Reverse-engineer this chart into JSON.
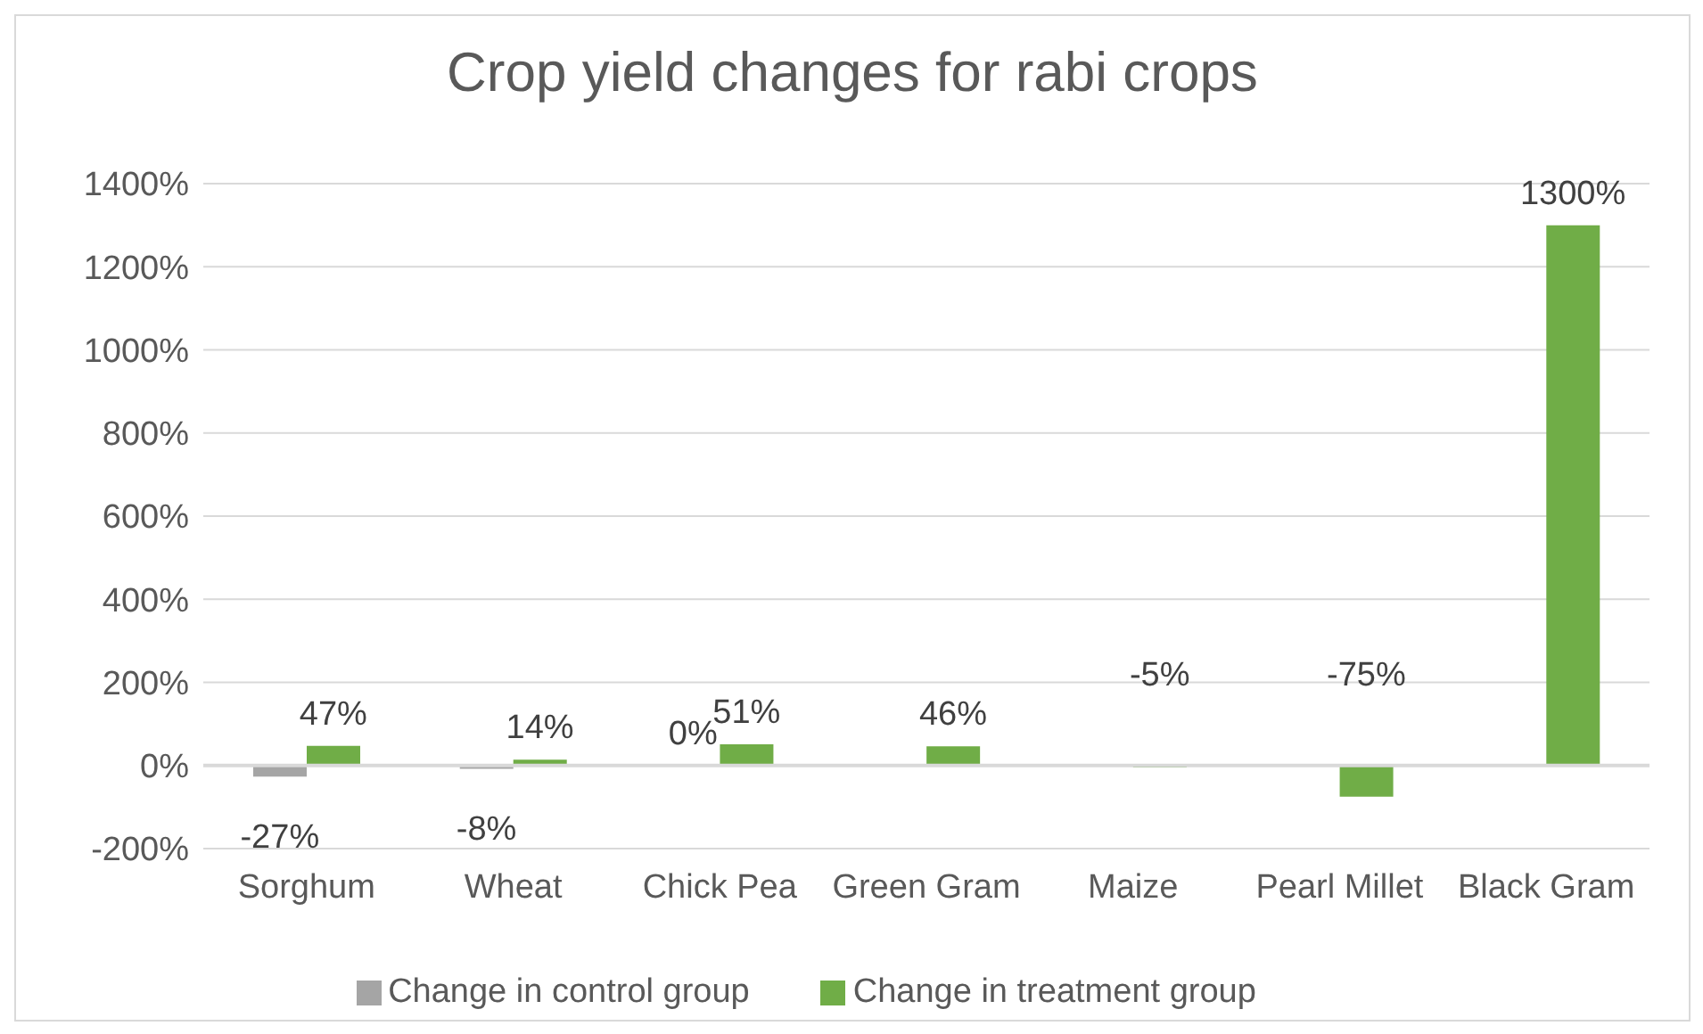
{
  "chart_data": {
    "type": "bar",
    "title": "Crop yield changes for rabi crops",
    "categories": [
      "Sorghum",
      "Wheat",
      "Chick Pea",
      "Green Gram",
      "Maize",
      "Pearl Millet",
      "Black Gram"
    ],
    "series": [
      {
        "name": "Change in control group",
        "color": "#a5a5a5",
        "values": [
          -27,
          -8,
          0,
          null,
          null,
          null,
          null
        ],
        "value_labels": [
          "-27%",
          "-8%",
          "0%",
          null,
          null,
          null,
          null
        ]
      },
      {
        "name": "Change in treatment group",
        "color": "#70ad47",
        "values": [
          47,
          14,
          51,
          46,
          -5,
          -75,
          1300
        ],
        "value_labels": [
          "47%",
          "14%",
          "51%",
          "46%",
          "-5%",
          "-75%",
          "1300%"
        ]
      }
    ],
    "ylim": [
      -200,
      1400
    ],
    "yticks": [
      {
        "value": -200,
        "label": "-200%"
      },
      {
        "value": 0,
        "label": "0%"
      },
      {
        "value": 200,
        "label": "200%"
      },
      {
        "value": 400,
        "label": "400%"
      },
      {
        "value": 600,
        "label": "600%"
      },
      {
        "value": 800,
        "label": "800%"
      },
      {
        "value": 1000,
        "label": "1000%"
      },
      {
        "value": 1200,
        "label": "1200%"
      },
      {
        "value": 1400,
        "label": "1400%"
      }
    ],
    "grid": "y",
    "legend": "bottom"
  }
}
